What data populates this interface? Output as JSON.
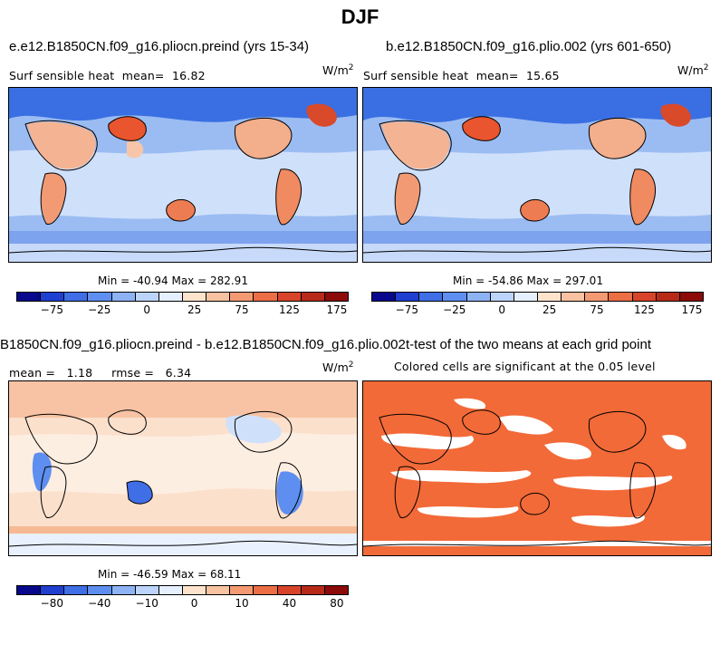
{
  "main_title": "DJF",
  "panel_a": {
    "title": "e.e12.B1850CN.f09_g16.pliocn.preind (yrs 15-34)",
    "field_label": "Surf sensible heat",
    "mean_label": "mean=",
    "mean_value": "16.82",
    "units": "W/m",
    "units_exp": "2",
    "min_max": "Min = -40.94 Max = 282.91"
  },
  "panel_b": {
    "title": "b.e12.B1850CN.f09_g16.plio.002 (yrs 601-650)",
    "field_label": "Surf sensible heat",
    "mean_label": "mean=",
    "mean_value": "15.65",
    "units": "W/m",
    "units_exp": "2",
    "min_max": "Min = -54.86 Max = 297.01"
  },
  "panel_c": {
    "title": "B1850CN.f09_g16.pliocn.preind - b.e12.B1850CN.f09_g16.plio.002",
    "mean_label": "mean =",
    "mean_value": "1.18",
    "rmse_label": "rmse =",
    "rmse_value": "6.34",
    "units": "W/m",
    "units_exp": "2",
    "min_max": "Min = -46.59 Max = 68.11"
  },
  "panel_d": {
    "title": "t-test of the two means at each grid point",
    "subtitle": "Colored cells are significant at the 0.05 level"
  },
  "colorbar_top": {
    "colors": [
      "#08088c",
      "#1f3fd1",
      "#3f6ee6",
      "#5e8ff0",
      "#8eb3f5",
      "#bcd4f9",
      "#e5efff",
      "#fde3cc",
      "#f9c2a0",
      "#f49a72",
      "#ec6e45",
      "#d8442a",
      "#b82a18",
      "#8c0a08"
    ],
    "tick_labels": [
      "-75",
      "-25",
      "0",
      "25",
      "75",
      "125",
      "175"
    ]
  },
  "colorbar_diff": {
    "colors": [
      "#08088c",
      "#1f3fd1",
      "#3f6ee6",
      "#5e8ff0",
      "#8eb3f5",
      "#bcd4f9",
      "#e5efff",
      "#fde3cc",
      "#f9c2a0",
      "#f49a72",
      "#ec6e45",
      "#d8442a",
      "#b82a18",
      "#8c0a08"
    ],
    "tick_labels": [
      "-80",
      "-40",
      "-10",
      "0",
      "10",
      "40",
      "80"
    ]
  },
  "colors": {
    "ocean_base": "#9bbcf2",
    "diff_base": "#fbe0cc",
    "significant": "#f26a38",
    "land_warm": "#f29a74",
    "cold_arctic": "#3a6fe3"
  }
}
